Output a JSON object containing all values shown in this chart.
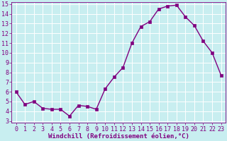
{
  "x_data": [
    0,
    1,
    2,
    3,
    4,
    5,
    6,
    7,
    8,
    9,
    10,
    11,
    12,
    13,
    14,
    15,
    16,
    17,
    18,
    19,
    20,
    21,
    22,
    23
  ],
  "y_data": [
    6.0,
    4.7,
    5.0,
    4.3,
    4.2,
    4.2,
    3.5,
    4.6,
    4.5,
    4.2,
    6.3,
    7.5,
    8.5,
    11.0,
    12.7,
    13.2,
    14.5,
    14.8,
    14.9,
    13.7,
    12.8,
    11.2,
    10.0,
    7.7
  ],
  "line_color": "#800080",
  "marker_color": "#800080",
  "bg_color": "#c8eef0",
  "grid_color": "#ffffff",
  "xlabel": "Windchill (Refroidissement éolien,°C)",
  "xlim": [
    -0.5,
    23.5
  ],
  "ylim": [
    2.8,
    15.2
  ],
  "yticks": [
    3,
    4,
    5,
    6,
    7,
    8,
    9,
    10,
    11,
    12,
    13,
    14,
    15
  ],
  "xticks": [
    0,
    1,
    2,
    3,
    4,
    5,
    6,
    7,
    8,
    9,
    10,
    11,
    12,
    13,
    14,
    15,
    16,
    17,
    18,
    19,
    20,
    21,
    22,
    23
  ],
  "xlabel_fontsize": 6.5,
  "tick_fontsize": 6.0,
  "axis_color": "#800080",
  "linewidth": 1.0,
  "markersize": 2.2
}
